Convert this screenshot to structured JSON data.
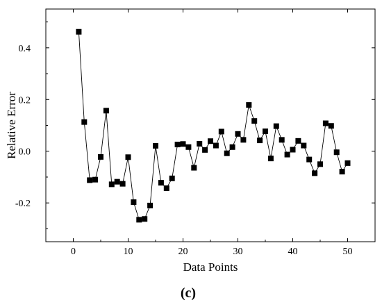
{
  "chart_data": {
    "type": "line",
    "xlabel": "Data Points",
    "ylabel": "Relative Error",
    "panel_label": "(c)",
    "xlim": [
      -5,
      55
    ],
    "ylim": [
      -0.35,
      0.55
    ],
    "x_ticks": [
      0,
      10,
      20,
      30,
      40,
      50
    ],
    "x_tick_labels": [
      "0",
      "10",
      "20",
      "30",
      "40",
      "50"
    ],
    "y_ticks": [
      -0.2,
      0.0,
      0.2,
      0.4
    ],
    "y_tick_labels": [
      "-0.2",
      "0.0",
      "0.2",
      "0.4"
    ],
    "grid": false,
    "legend": "none",
    "marker": "square",
    "color": "#000000",
    "series": [
      {
        "x": [
          1,
          2,
          3,
          4,
          5,
          6,
          7,
          8,
          9,
          10,
          11,
          12,
          13,
          14,
          15,
          16,
          17,
          18,
          19,
          20,
          21,
          22,
          23,
          24,
          25,
          26,
          27,
          28,
          29,
          30,
          31,
          32,
          33,
          34,
          35,
          36,
          37,
          38,
          39,
          40,
          41,
          42,
          43,
          44,
          45,
          46,
          47,
          48,
          49,
          50
        ],
        "values": [
          0.462,
          0.113,
          -0.112,
          -0.11,
          -0.022,
          0.157,
          -0.128,
          -0.118,
          -0.126,
          -0.023,
          -0.197,
          -0.265,
          -0.262,
          -0.21,
          0.021,
          -0.122,
          -0.143,
          -0.105,
          0.026,
          0.028,
          0.016,
          -0.064,
          0.029,
          0.005,
          0.039,
          0.022,
          0.076,
          -0.008,
          0.016,
          0.067,
          0.044,
          0.179,
          0.117,
          0.042,
          0.077,
          -0.028,
          0.097,
          0.044,
          -0.013,
          0.006,
          0.04,
          0.022,
          -0.032,
          -0.085,
          -0.05,
          0.108,
          0.098,
          -0.004,
          -0.079,
          -0.046
        ]
      }
    ]
  }
}
